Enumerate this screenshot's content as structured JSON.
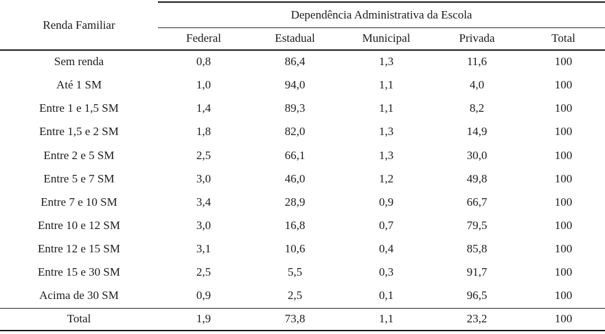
{
  "chart_data": {
    "type": "table",
    "corner_header": "Renda Familiar",
    "group_header": "Dependência Administrativa da Escola",
    "columns": [
      "Federal",
      "Estadual",
      "Municipal",
      "Privada",
      "Total"
    ],
    "rows": [
      {
        "label": "Sem renda",
        "values": [
          "0,8",
          "86,4",
          "1,3",
          "11,6",
          "100"
        ]
      },
      {
        "label": "Até 1 SM",
        "values": [
          "1,0",
          "94,0",
          "1,1",
          "4,0",
          "100"
        ]
      },
      {
        "label": "Entre 1 e 1,5 SM",
        "values": [
          "1,4",
          "89,3",
          "1,1",
          "8,2",
          "100"
        ]
      },
      {
        "label": "Entre 1,5 e 2 SM",
        "values": [
          "1,8",
          "82,0",
          "1,3",
          "14,9",
          "100"
        ]
      },
      {
        "label": "Entre 2 e 5 SM",
        "values": [
          "2,5",
          "66,1",
          "1,3",
          "30,0",
          "100"
        ]
      },
      {
        "label": "Entre 5 e 7 SM",
        "values": [
          "3,0",
          "46,0",
          "1,2",
          "49,8",
          "100"
        ]
      },
      {
        "label": "Entre 7 e 10 SM",
        "values": [
          "3,4",
          "28,9",
          "0,9",
          "66,7",
          "100"
        ]
      },
      {
        "label": "Entre 10 e 12 SM",
        "values": [
          "3,0",
          "16,8",
          "0,7",
          "79,5",
          "100"
        ]
      },
      {
        "label": "Entre 12 e 15 SM",
        "values": [
          "3,1",
          "10,6",
          "0,4",
          "85,8",
          "100"
        ]
      },
      {
        "label": "Entre 15 e 30 SM",
        "values": [
          "2,5",
          "5,5",
          "0,3",
          "91,7",
          "100"
        ]
      },
      {
        "label": "Acima de 30 SM",
        "values": [
          "0,9",
          "2,5",
          "0,1",
          "96,5",
          "100"
        ]
      }
    ],
    "total_row": {
      "label": "Total",
      "values": [
        "1,9",
        "73,8",
        "1,1",
        "23,2",
        "100"
      ]
    }
  },
  "colors": {
    "text": "#1b1b1b",
    "rule": "#1a1a1a",
    "background": "#ffffff"
  }
}
